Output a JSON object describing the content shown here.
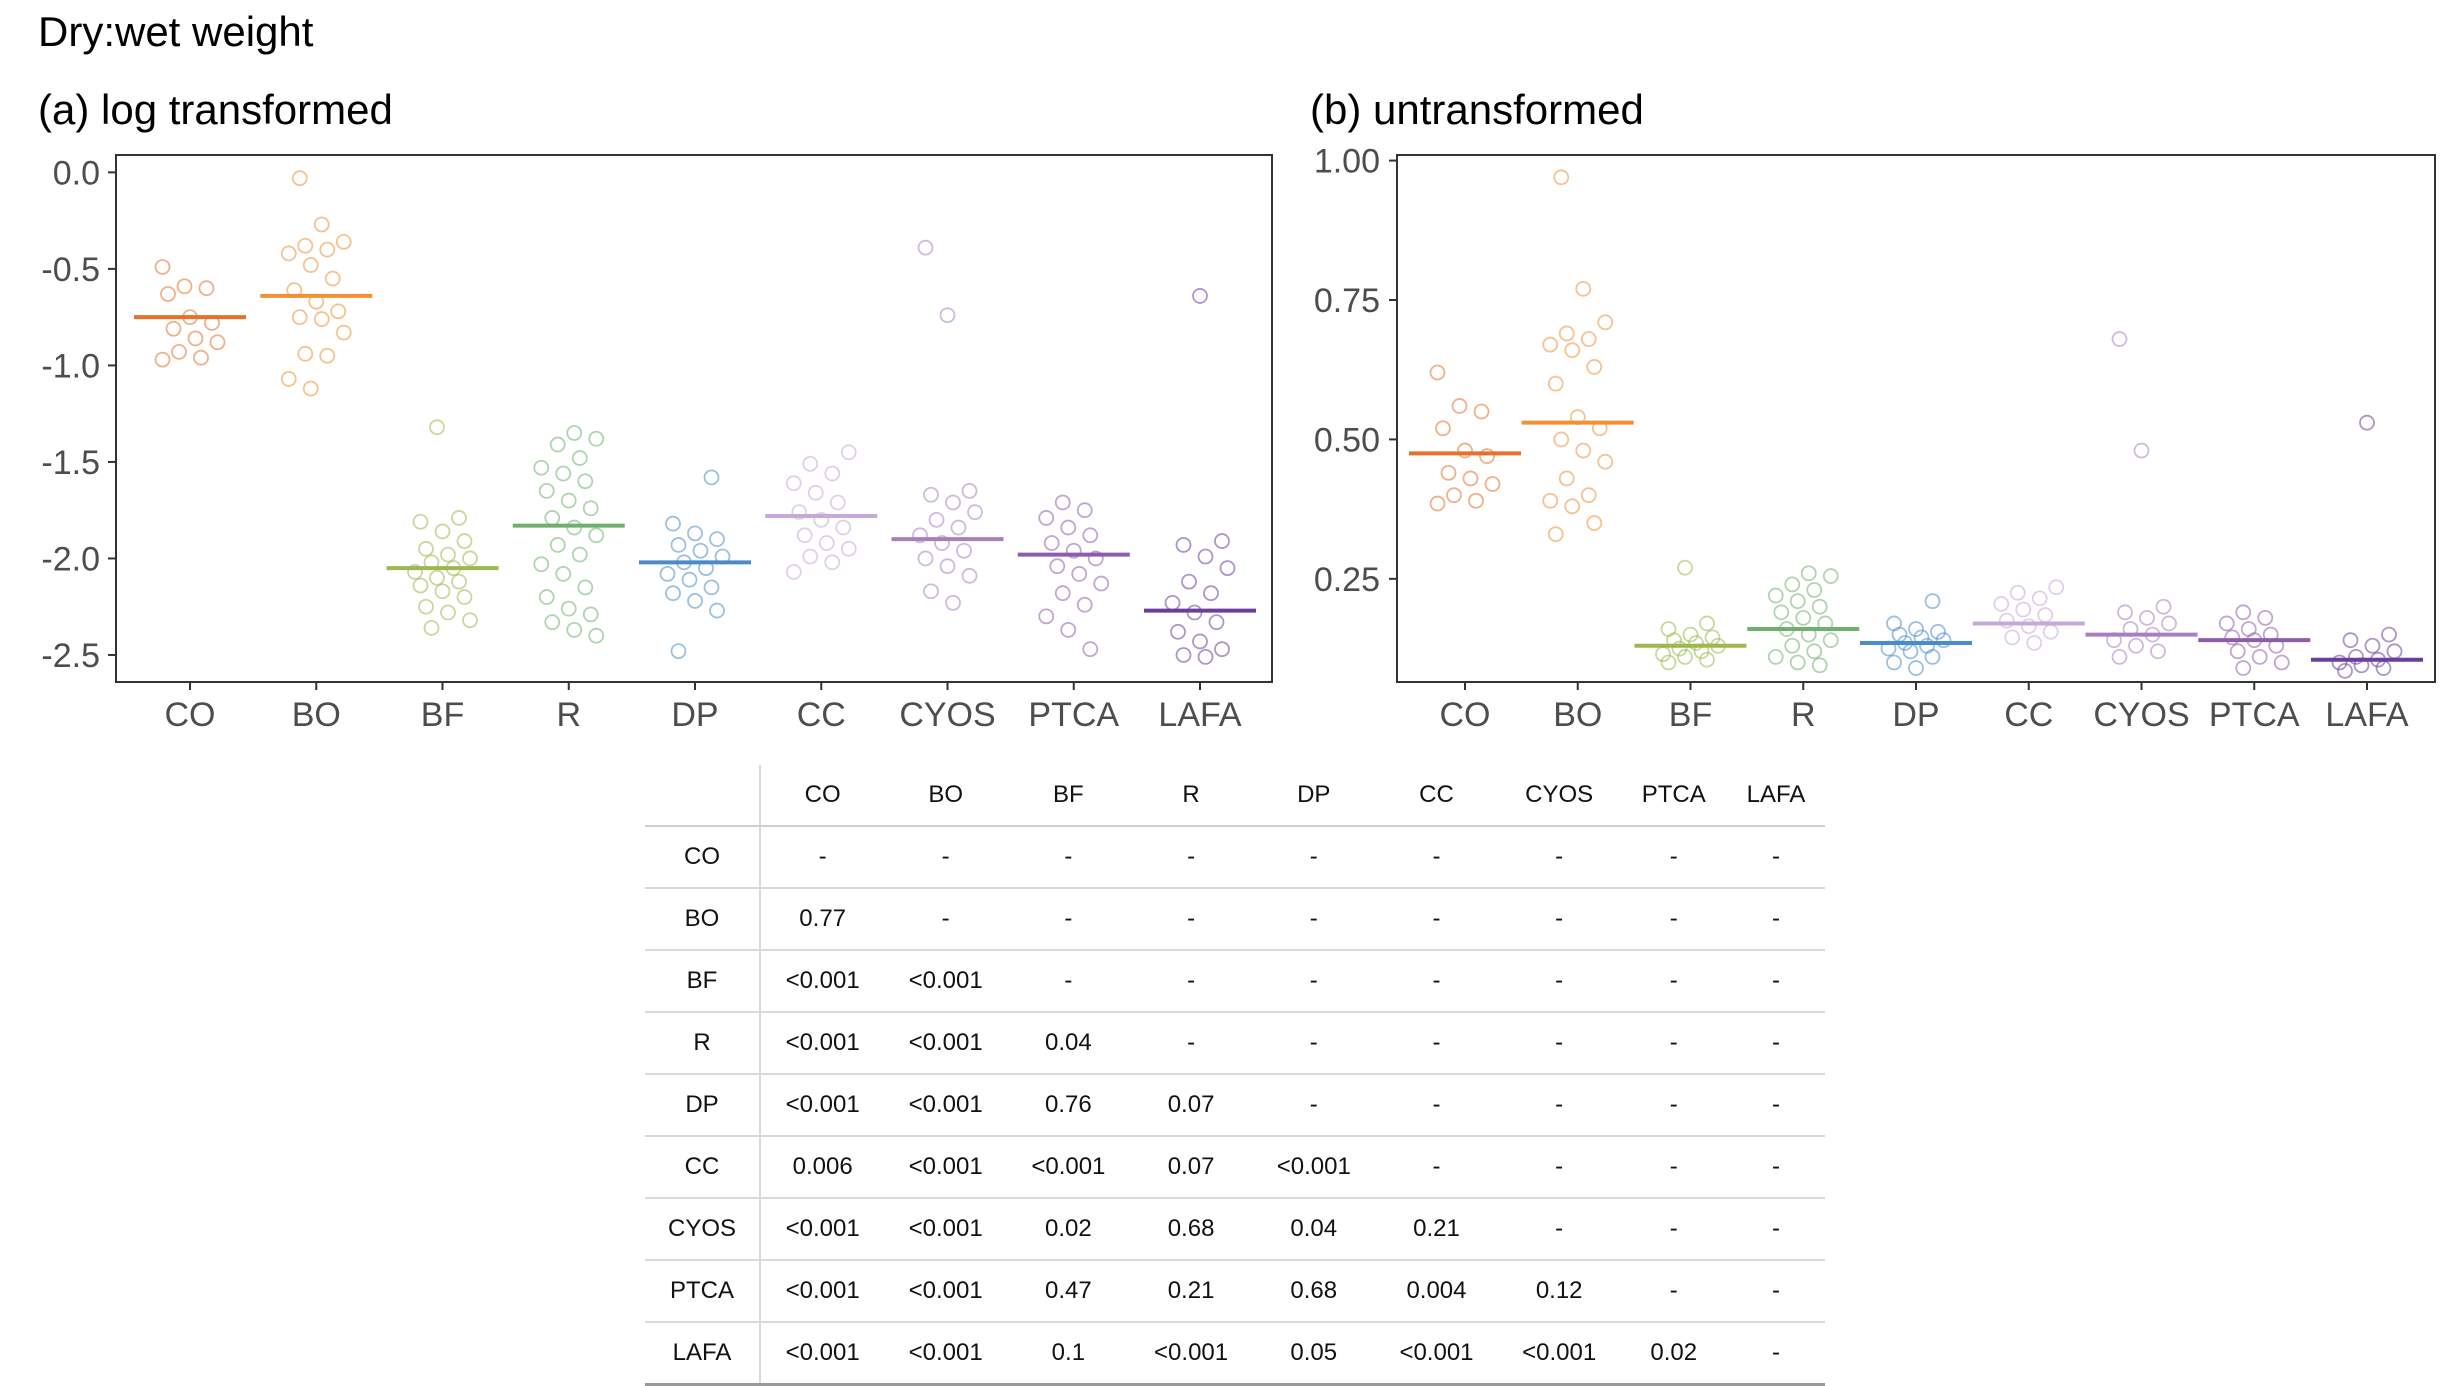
{
  "title": "Dry:wet weight",
  "groups": [
    "CO",
    "BO",
    "BF",
    "R",
    "DP",
    "CC",
    "CYOS",
    "PTCA",
    "LAFA"
  ],
  "colors": {
    "CO": "#E8702A",
    "BO": "#F39034",
    "BF": "#9DB84E",
    "R": "#6FB06F",
    "DP": "#4A8CC9",
    "CC": "#C8A8D8",
    "CYOS": "#A77FC1",
    "PTCA": "#8E5CAE",
    "LAFA": "#6B3E9C"
  },
  "chart_data": [
    {
      "type": "scatter",
      "title": "(a) log transformed",
      "xlabel": "",
      "ylabel": "",
      "ylim": [
        -2.64,
        0.09
      ],
      "yticks": [
        0.0,
        -0.5,
        -1.0,
        -1.5,
        -2.0,
        -2.5
      ],
      "ytick_labels": [
        "0.0",
        "-0.5",
        "-1.0",
        "-1.5",
        "-2.0",
        "-2.5"
      ],
      "categories": [
        "CO",
        "BO",
        "BF",
        "R",
        "DP",
        "CC",
        "CYOS",
        "PTCA",
        "LAFA"
      ],
      "means": [
        -0.75,
        -0.64,
        -2.05,
        -1.83,
        -2.02,
        -1.78,
        -1.9,
        -1.98,
        -2.27
      ],
      "points": [
        [
          -0.49,
          -0.59,
          -0.6,
          -0.63,
          -0.75,
          -0.78,
          -0.81,
          -0.86,
          -0.88,
          -0.93,
          -0.96,
          -0.97
        ],
        [
          -0.03,
          -0.27,
          -0.36,
          -0.38,
          -0.4,
          -0.42,
          -0.48,
          -0.55,
          -0.61,
          -0.67,
          -0.72,
          -0.75,
          -0.76,
          -0.83,
          -0.94,
          -0.95,
          -1.07,
          -1.12
        ],
        [
          -1.32,
          -1.79,
          -1.81,
          -1.86,
          -1.91,
          -1.95,
          -1.98,
          -2.0,
          -2.02,
          -2.05,
          -2.07,
          -2.1,
          -2.12,
          -2.14,
          -2.17,
          -2.2,
          -2.25,
          -2.28,
          -2.32,
          -2.36
        ],
        [
          -1.35,
          -1.38,
          -1.41,
          -1.48,
          -1.53,
          -1.56,
          -1.6,
          -1.65,
          -1.7,
          -1.74,
          -1.79,
          -1.84,
          -1.88,
          -1.93,
          -1.98,
          -2.03,
          -2.08,
          -2.15,
          -2.2,
          -2.26,
          -2.29,
          -2.33,
          -2.37,
          -2.4
        ],
        [
          -1.58,
          -1.82,
          -1.87,
          -1.9,
          -1.93,
          -1.96,
          -1.99,
          -2.02,
          -2.05,
          -2.08,
          -2.11,
          -2.15,
          -2.18,
          -2.22,
          -2.27,
          -2.48
        ],
        [
          -1.45,
          -1.51,
          -1.56,
          -1.61,
          -1.66,
          -1.71,
          -1.76,
          -1.8,
          -1.84,
          -1.88,
          -1.92,
          -1.95,
          -1.99,
          -2.02,
          -2.07
        ],
        [
          -0.39,
          -0.74,
          -1.65,
          -1.67,
          -1.71,
          -1.76,
          -1.8,
          -1.84,
          -1.88,
          -1.92,
          -1.96,
          -2.0,
          -2.04,
          -2.09,
          -2.17,
          -2.23
        ],
        [
          -1.71,
          -1.75,
          -1.79,
          -1.84,
          -1.88,
          -1.92,
          -1.96,
          -2.0,
          -2.04,
          -2.08,
          -2.13,
          -2.18,
          -2.24,
          -2.3,
          -2.37,
          -2.47
        ],
        [
          -0.64,
          -1.91,
          -1.93,
          -1.99,
          -2.05,
          -2.12,
          -2.18,
          -2.23,
          -2.28,
          -2.33,
          -2.38,
          -2.43,
          -2.47,
          -2.5,
          -2.51
        ]
      ]
    },
    {
      "type": "scatter",
      "title": "(b) untransformed",
      "xlabel": "",
      "ylabel": "",
      "ylim": [
        0.065,
        1.01
      ],
      "yticks": [
        1.0,
        0.75,
        0.5,
        0.25
      ],
      "ytick_labels": [
        "1.00",
        "0.75",
        "0.50",
        "0.25"
      ],
      "categories": [
        "CO",
        "BO",
        "BF",
        "R",
        "DP",
        "CC",
        "CYOS",
        "PTCA",
        "LAFA"
      ],
      "means": [
        0.475,
        0.53,
        0.13,
        0.16,
        0.135,
        0.17,
        0.15,
        0.14,
        0.105
      ],
      "points": [
        [
          0.62,
          0.56,
          0.55,
          0.52,
          0.48,
          0.47,
          0.44,
          0.43,
          0.42,
          0.4,
          0.39,
          0.385
        ],
        [
          0.97,
          0.77,
          0.71,
          0.69,
          0.68,
          0.67,
          0.66,
          0.63,
          0.6,
          0.54,
          0.52,
          0.5,
          0.48,
          0.46,
          0.43,
          0.4,
          0.39,
          0.38,
          0.35,
          0.33
        ],
        [
          0.27,
          0.17,
          0.16,
          0.15,
          0.145,
          0.14,
          0.135,
          0.13,
          0.125,
          0.12,
          0.115,
          0.11,
          0.105,
          0.1
        ],
        [
          0.26,
          0.255,
          0.24,
          0.23,
          0.22,
          0.21,
          0.2,
          0.19,
          0.18,
          0.17,
          0.16,
          0.15,
          0.14,
          0.13,
          0.12,
          0.11,
          0.1,
          0.095
        ],
        [
          0.21,
          0.17,
          0.16,
          0.155,
          0.15,
          0.145,
          0.14,
          0.135,
          0.13,
          0.125,
          0.12,
          0.11,
          0.1,
          0.09
        ],
        [
          0.235,
          0.225,
          0.215,
          0.205,
          0.195,
          0.185,
          0.175,
          0.165,
          0.155,
          0.145,
          0.135
        ],
        [
          0.68,
          0.48,
          0.2,
          0.19,
          0.18,
          0.17,
          0.16,
          0.15,
          0.14,
          0.13,
          0.12,
          0.11
        ],
        [
          0.19,
          0.18,
          0.17,
          0.16,
          0.15,
          0.145,
          0.14,
          0.13,
          0.12,
          0.11,
          0.1,
          0.09
        ],
        [
          0.53,
          0.15,
          0.14,
          0.13,
          0.12,
          0.11,
          0.105,
          0.1,
          0.095,
          0.09,
          0.085
        ]
      ]
    }
  ],
  "table": {
    "columns": [
      "CO",
      "BO",
      "BF",
      "R",
      "DP",
      "CC",
      "CYOS",
      "PTCA",
      "LAFA"
    ],
    "rows": [
      {
        "label": "CO",
        "cells": [
          "-",
          "-",
          "-",
          "-",
          "-",
          "-",
          "-",
          "-",
          "-"
        ]
      },
      {
        "label": "BO",
        "cells": [
          "0.77",
          "-",
          "-",
          "-",
          "-",
          "-",
          "-",
          "-",
          "-"
        ]
      },
      {
        "label": "BF",
        "cells": [
          "<0.001",
          "<0.001",
          "-",
          "-",
          "-",
          "-",
          "-",
          "-",
          "-"
        ]
      },
      {
        "label": "R",
        "cells": [
          "<0.001",
          "<0.001",
          "0.04",
          "-",
          "-",
          "-",
          "-",
          "-",
          "-"
        ]
      },
      {
        "label": "DP",
        "cells": [
          "<0.001",
          "<0.001",
          "0.76",
          "0.07",
          "-",
          "-",
          "-",
          "-",
          "-"
        ]
      },
      {
        "label": "CC",
        "cells": [
          "0.006",
          "<0.001",
          "<0.001",
          "0.07",
          "<0.001",
          "-",
          "-",
          "-",
          "-"
        ]
      },
      {
        "label": "CYOS",
        "cells": [
          "<0.001",
          "<0.001",
          "0.02",
          "0.68",
          "0.04",
          "0.21",
          "-",
          "-",
          "-"
        ]
      },
      {
        "label": "PTCA",
        "cells": [
          "<0.001",
          "<0.001",
          "0.47",
          "0.21",
          "0.68",
          "0.004",
          "0.12",
          "-",
          "-"
        ]
      },
      {
        "label": "LAFA",
        "cells": [
          "<0.001",
          "<0.001",
          "0.1",
          "<0.001",
          "0.05",
          "<0.001",
          "<0.001",
          "0.02",
          "-"
        ]
      }
    ]
  }
}
